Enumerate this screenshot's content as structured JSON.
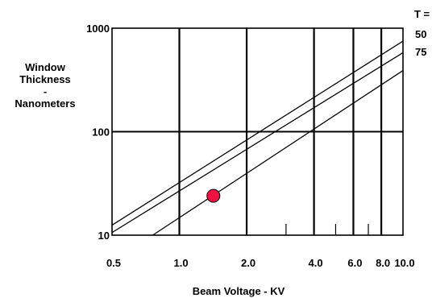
{
  "chart_data": {
    "type": "line",
    "ylabel_lines": [
      "Window",
      "Thickness",
      "-",
      "Nanometers"
    ],
    "xlabel": "Beam Voltage - KV",
    "x_scale": "log",
    "y_scale": "log",
    "xlim": [
      0.5,
      10.0
    ],
    "ylim": [
      10,
      1000
    ],
    "x_tick_labels": [
      {
        "value": 0.5,
        "label": "0.5"
      },
      {
        "value": 1.0,
        "label": "1.0"
      },
      {
        "value": 2.0,
        "label": "2.0"
      },
      {
        "value": 4.0,
        "label": "4.0"
      },
      {
        "value": 6.0,
        "label": "6.0"
      },
      {
        "value": 8.0,
        "label": "8.0"
      },
      {
        "value": 10.0,
        "label": "10.0"
      }
    ],
    "y_tick_labels": [
      {
        "value": 10,
        "label": "10"
      },
      {
        "value": 100,
        "label": "100"
      },
      {
        "value": 1000,
        "label": "1000"
      }
    ],
    "vertical_gridlines": [
      1.0,
      2.0,
      4.0,
      6.0,
      8.0
    ],
    "horizontal_gridlines": [
      100
    ],
    "minor_x_ticks": [
      3.0,
      5.0,
      7.0
    ],
    "legend_title": "T = %",
    "legend_labels": [
      "50",
      "75"
    ],
    "series": [
      {
        "points": [
          [
            0.5,
            12.5
          ],
          [
            10.0,
            750
          ]
        ]
      },
      {
        "points": [
          [
            0.5,
            10.6
          ],
          [
            10.0,
            580
          ]
        ]
      },
      {
        "points": [
          [
            0.76,
            10
          ],
          [
            10.0,
            390
          ]
        ]
      }
    ],
    "marker": {
      "x": 1.42,
      "y": 24,
      "color": "#ee1144"
    },
    "line_color": "#000000",
    "grid": true
  }
}
